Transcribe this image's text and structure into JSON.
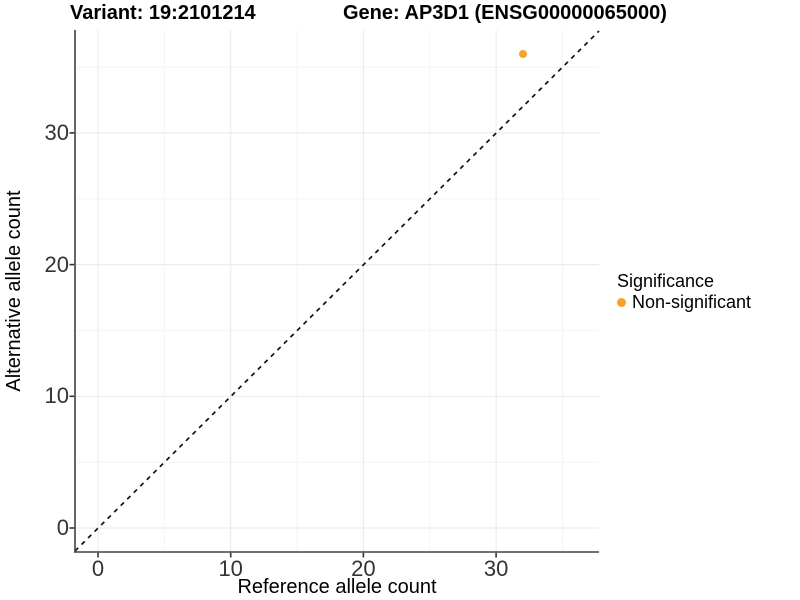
{
  "chart_data": {
    "type": "scatter",
    "title_left": "Variant: 19:2101214",
    "title_right": "Gene: AP3D1 (ENSG00000065000)",
    "xlabel": "Reference allele count",
    "ylabel": "Alternative allele count",
    "x_ticks": [
      "0",
      "10",
      "20",
      "30"
    ],
    "y_ticks": [
      "0",
      "10",
      "20",
      "30"
    ],
    "xlim": [
      -1.7,
      37.7
    ],
    "ylim": [
      -1.8,
      38.3
    ],
    "grid": "major and minor, light gray",
    "points": [
      {
        "x": 32,
        "y": 36,
        "series": "Non-significant"
      }
    ],
    "reference_line": {
      "type": "identity y=x",
      "style": "dashed",
      "color": "#111111"
    },
    "legend": {
      "title": "Significance",
      "position": "right",
      "entries": [
        {
          "label": "Non-significant",
          "color": "#F8A12B"
        }
      ]
    },
    "colors": {
      "point": "#F8A12B",
      "axis_line": "#404040",
      "tick_text": "#333333",
      "major_grid": "#ececec",
      "minor_grid": "#f4f4f4"
    }
  }
}
